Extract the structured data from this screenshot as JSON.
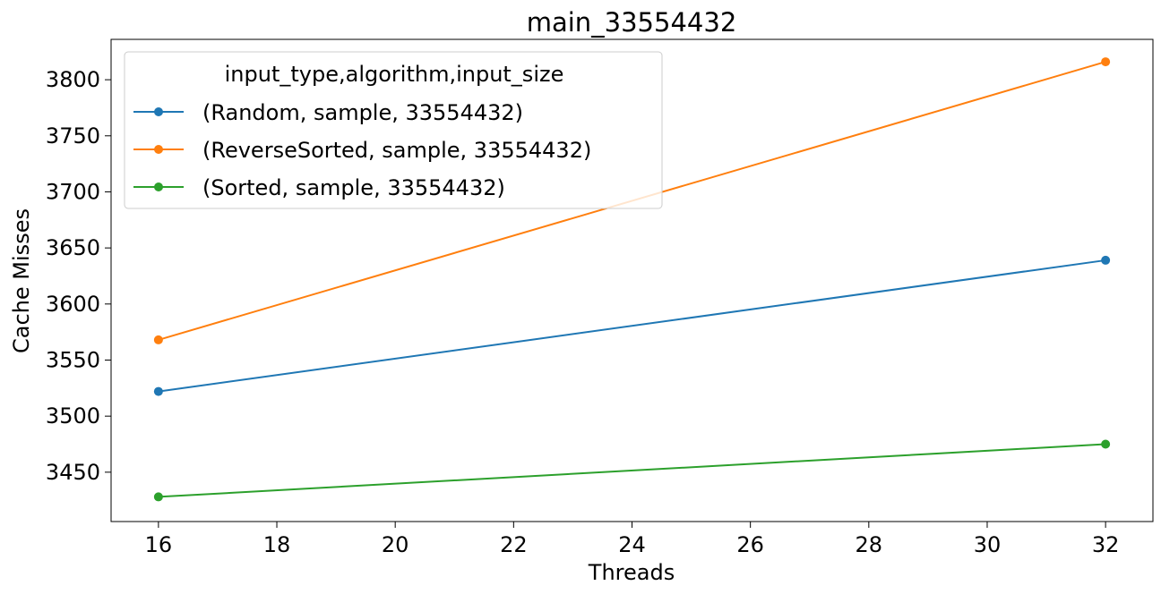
{
  "chart_data": {
    "type": "line",
    "title": "main_33554432",
    "xlabel": "Threads",
    "ylabel": "Cache Misses",
    "xlim": [
      15.2,
      32.8
    ],
    "ylim": [
      3406,
      3836
    ],
    "xticks": [
      16,
      18,
      20,
      22,
      24,
      26,
      28,
      30,
      32
    ],
    "yticks": [
      3450,
      3500,
      3550,
      3600,
      3650,
      3700,
      3750,
      3800
    ],
    "grid": false,
    "legend": {
      "title": "input_type,algorithm,input_size",
      "placement": "upper-left"
    },
    "series": [
      {
        "name": "(Random, sample, 33554432)",
        "color": "#1f77b4",
        "x": [
          16,
          32
        ],
        "y": [
          3522,
          3639
        ]
      },
      {
        "name": "(ReverseSorted, sample, 33554432)",
        "color": "#ff7f0e",
        "x": [
          16,
          32
        ],
        "y": [
          3568,
          3816
        ]
      },
      {
        "name": "(Sorted, sample, 33554432)",
        "color": "#2ca02c",
        "x": [
          16,
          32
        ],
        "y": [
          3428,
          3475
        ]
      }
    ]
  }
}
